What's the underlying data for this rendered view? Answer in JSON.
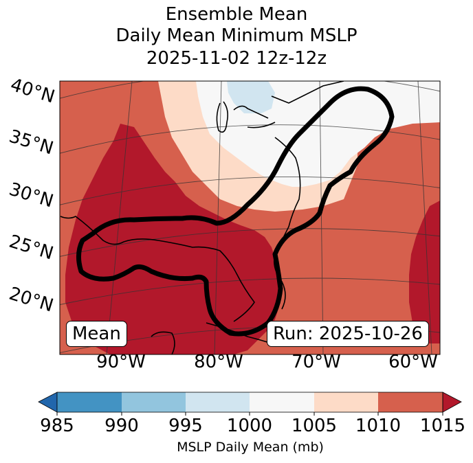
{
  "title": {
    "line1": "Ensemble Mean",
    "line2": "Daily Mean Minimum MSLP",
    "line3": "2025-11-02 12z-12z"
  },
  "map": {
    "lat_labels": [
      "40°N",
      "35°N",
      "30°N",
      "25°N",
      "20°N"
    ],
    "lon_labels": [
      "90°W",
      "80°W",
      "70°W",
      "60°W"
    ],
    "mean_box": "Mean",
    "run_box": "Run: 2025-10-26",
    "colors": {
      "c985": "#2166ac",
      "c985_990": "#4393c3",
      "c990_995": "#92c5de",
      "c995_1000": "#d1e5f0",
      "c1000_1005": "#f7f7f7",
      "c1005_1010": "#fddbc7",
      "c1010_1015": "#d6604d",
      "c1015": "#b2182b"
    }
  },
  "colorbar": {
    "ticks": [
      "985",
      "990",
      "995",
      "1000",
      "1005",
      "1010",
      "1015"
    ],
    "label": "MSLP Daily Mean (mb)"
  }
}
